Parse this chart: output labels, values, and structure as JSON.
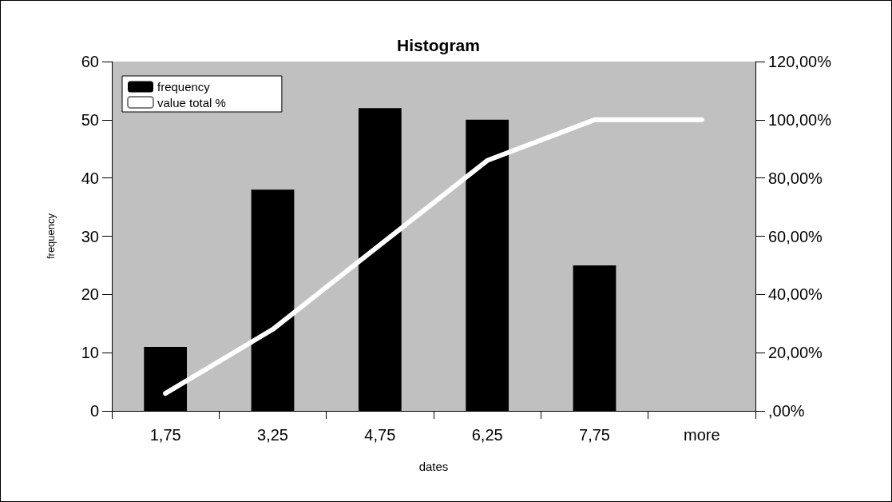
{
  "chart_data": {
    "type": "bar",
    "title": "Histogram",
    "xlabel": "dates",
    "ylabel": "frequency",
    "categories": [
      "1,75",
      "3,25",
      "4,75",
      "6,25",
      "7,75",
      "more"
    ],
    "series": [
      {
        "name": "frequency",
        "color": "#000000",
        "values": [
          11,
          38,
          52,
          50,
          25,
          0
        ]
      },
      {
        "name": "value total %",
        "type": "line",
        "axis": "y2",
        "color": "#ffffff",
        "values": [
          6,
          28,
          57,
          86,
          100,
          100
        ]
      }
    ],
    "ylim": [
      0,
      60
    ],
    "yticks": [
      0,
      10,
      20,
      30,
      40,
      50,
      60
    ],
    "y2lim": [
      0,
      120
    ],
    "y2ticks": [
      {
        "value": 0,
        "label": ",00%"
      },
      {
        "value": 20,
        "label": "20,00%"
      },
      {
        "value": 40,
        "label": "40,00%"
      },
      {
        "value": 60,
        "label": "60,00%"
      },
      {
        "value": 80,
        "label": "80,00%"
      },
      {
        "value": 100,
        "label": "100,00%"
      },
      {
        "value": 120,
        "label": "120,00%"
      }
    ],
    "legend": "top left",
    "grid": false
  }
}
